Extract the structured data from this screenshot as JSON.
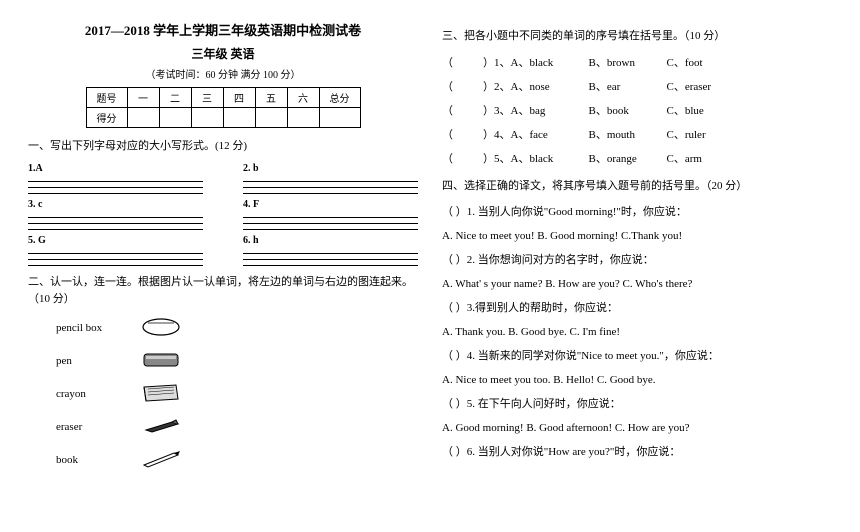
{
  "header": {
    "title": "2017—2018 学年上学期三年级英语期中检测试卷",
    "subtitle": "三年级  英语",
    "exam_info": "（考试时间：60 分钟    满分 100 分）"
  },
  "score_table": {
    "row1": [
      "题号",
      "一",
      "二",
      "三",
      "四",
      "五",
      "六",
      "总分"
    ],
    "row2_label": "得分"
  },
  "section1": {
    "heading": "一、写出下列字母对应的大小写形式。(12 分)",
    "items": [
      "1.A",
      "2. b",
      "3. c",
      "4. F",
      "5. G",
      "6. h"
    ]
  },
  "section2": {
    "heading": "二、认一认，连一连。根据图片认一认单词，将左边的单词与右边的图连起来。（10 分）",
    "words": [
      "pencil box",
      "pen",
      "crayon",
      "eraser",
      "book"
    ]
  },
  "section3": {
    "heading": "三、把各小题中不同类的单词的序号填在括号里。（10 分）",
    "items": [
      {
        "n": "）1、",
        "a": "A、black",
        "b": "B、brown",
        "c": "C、foot"
      },
      {
        "n": "）2、",
        "a": "A、nose",
        "b": "B、ear",
        "c": "C、eraser"
      },
      {
        "n": "）3、",
        "a": "A、bag",
        "b": "B、book",
        "c": "C、blue"
      },
      {
        "n": "）4、",
        "a": "A、face",
        "b": "B、mouth",
        "c": "C、ruler"
      },
      {
        "n": "）5、",
        "a": "A、black",
        "b": "B、orange",
        "c": "C、arm"
      }
    ]
  },
  "section4": {
    "heading": "四、选择正确的译文，将其序号填入题号前的括号里。（20 分）",
    "items": [
      {
        "q": "）1. 当别人向你说\"Good morning!\"时，你应说：",
        "opts": "A. Nice to meet you!   B. Good morning!    C.Thank you!"
      },
      {
        "q": "）2. 当你想询问对方的名字时，你应说：",
        "opts": "A. What' s   your   name?   B. How are you?   C. Who's there?"
      },
      {
        "q": "）3.得到别人的帮助时，你应说：",
        "opts": "A. Thank you.    B. Good bye.    C. I'm fine!"
      },
      {
        "q": "）4. 当新来的同学对你说\"Nice to meet you.\"，你应说：",
        "opts": "A. Nice to meet you too.    B. Hello!    C. Good bye."
      },
      {
        "q": "）5. 在下午向人问好时，你应说：",
        "opts": "A. Good morning!   B. Good afternoon!   C. How are you?"
      },
      {
        "q": "）6. 当别人对你说\"How are you?\"时，你应说：",
        "opts": ""
      }
    ]
  }
}
